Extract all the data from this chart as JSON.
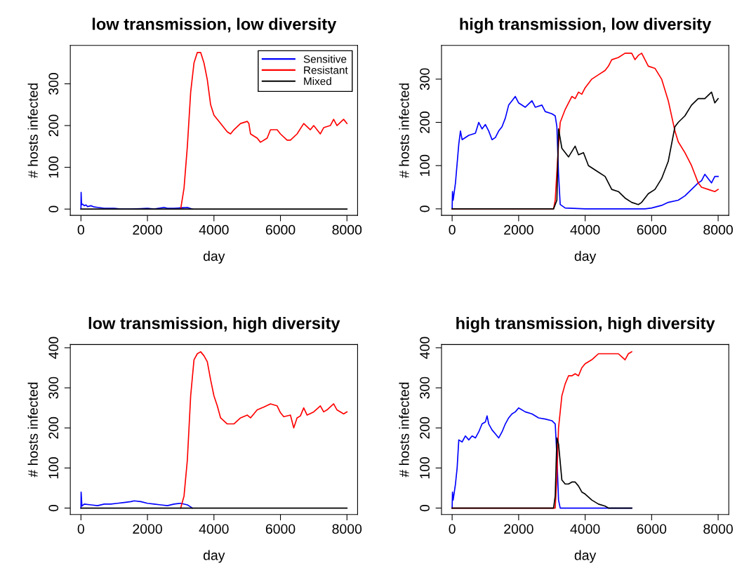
{
  "chart_data": [
    {
      "type": "line",
      "title": "low transmission, low diversity",
      "xlabel": "day",
      "ylabel": "# hosts infected",
      "xlim": [
        -320,
        8320
      ],
      "ylim": [
        -15,
        392
      ],
      "xticks": [
        0,
        2000,
        4000,
        6000,
        8000
      ],
      "yticks": [
        0,
        100,
        200,
        300
      ],
      "grid": false,
      "legend": "top right",
      "series": [
        {
          "name": "Sensitive",
          "color": "#0000ff",
          "x": [
            0,
            5,
            20,
            50,
            100,
            150,
            200,
            300,
            400,
            500,
            700,
            1000,
            1200,
            1500,
            1800,
            2000,
            2200,
            2500,
            2600,
            2800,
            3000,
            3200,
            3350
          ],
          "values": [
            0,
            40,
            10,
            12,
            8,
            10,
            6,
            8,
            5,
            4,
            2,
            2,
            0,
            0,
            1,
            2,
            0,
            4,
            2,
            2,
            3,
            4,
            0
          ]
        },
        {
          "name": "Resistant",
          "color": "#ff0000",
          "x": [
            3000,
            3100,
            3200,
            3300,
            3400,
            3500,
            3600,
            3700,
            3800,
            3900,
            4000,
            4200,
            4400,
            4500,
            4600,
            4800,
            5000,
            5050,
            5100,
            5300,
            5400,
            5600,
            5700,
            5900,
            6000,
            6200,
            6300,
            6500,
            6700,
            6900,
            7000,
            7200,
            7300,
            7500,
            7600,
            7700,
            7900,
            8000
          ],
          "values": [
            0,
            50,
            150,
            280,
            350,
            375,
            375,
            350,
            310,
            250,
            225,
            205,
            185,
            180,
            190,
            205,
            210,
            205,
            180,
            170,
            160,
            170,
            190,
            190,
            180,
            165,
            165,
            180,
            205,
            190,
            200,
            180,
            195,
            200,
            215,
            200,
            215,
            205
          ]
        },
        {
          "name": "Mixed",
          "color": "#000000",
          "x": [
            0,
            8000
          ],
          "values": [
            0,
            0
          ]
        }
      ]
    },
    {
      "type": "line",
      "title": "high transmission, low diversity",
      "xlabel": "day",
      "ylabel": "# hosts infected",
      "xlim": [
        -320,
        8320
      ],
      "ylim": [
        -15,
        378
      ],
      "xticks": [
        0,
        2000,
        4000,
        6000,
        8000
      ],
      "yticks": [
        0,
        100,
        200,
        300
      ],
      "grid": false,
      "legend": false,
      "series": [
        {
          "color": "#0000ff",
          "x": [
            0,
            10,
            30,
            100,
            200,
            250,
            300,
            500,
            700,
            800,
            900,
            1000,
            1100,
            1200,
            1300,
            1400,
            1500,
            1600,
            1700,
            1800,
            1900,
            2000,
            2200,
            2400,
            2500,
            2700,
            2800,
            3000,
            3100,
            3150,
            3200,
            3250,
            3400,
            4000,
            5000,
            5800,
            6000,
            6300,
            6500,
            6800,
            7000,
            7200,
            7400,
            7500,
            7600,
            7700,
            7800,
            7900,
            8000
          ],
          "values": [
            0,
            40,
            20,
            60,
            150,
            180,
            160,
            170,
            175,
            200,
            185,
            195,
            180,
            160,
            165,
            180,
            190,
            210,
            240,
            250,
            260,
            245,
            235,
            250,
            235,
            240,
            225,
            220,
            215,
            190,
            80,
            10,
            2,
            0,
            0,
            0,
            2,
            8,
            15,
            20,
            30,
            45,
            60,
            65,
            80,
            70,
            60,
            75,
            75
          ]
        },
        {
          "color": "#ff0000",
          "x": [
            0,
            3050,
            3100,
            3200,
            3250,
            3400,
            3600,
            3700,
            3800,
            3900,
            4000,
            4200,
            4400,
            4600,
            4700,
            4800,
            5000,
            5200,
            5400,
            5500,
            5600,
            5700,
            5800,
            5900,
            6100,
            6300,
            6500,
            6700,
            6800,
            7000,
            7200,
            7400,
            7500,
            7700,
            7900,
            8000
          ],
          "values": [
            0,
            0,
            20,
            150,
            200,
            230,
            260,
            255,
            270,
            265,
            280,
            300,
            310,
            320,
            330,
            345,
            350,
            360,
            360,
            345,
            355,
            360,
            345,
            330,
            325,
            300,
            250,
            180,
            155,
            130,
            100,
            60,
            50,
            45,
            40,
            45
          ]
        },
        {
          "color": "#000000",
          "x": [
            0,
            3050,
            3150,
            3200,
            3300,
            3500,
            3700,
            3800,
            3950,
            4100,
            4400,
            4600,
            4800,
            5000,
            5200,
            5400,
            5600,
            5700,
            5900,
            6100,
            6300,
            6500,
            6700,
            6800,
            7000,
            7200,
            7400,
            7600,
            7800,
            7900,
            8000
          ],
          "values": [
            0,
            0,
            20,
            185,
            140,
            120,
            145,
            125,
            130,
            100,
            85,
            75,
            45,
            40,
            25,
            15,
            10,
            15,
            35,
            45,
            70,
            110,
            190,
            200,
            215,
            240,
            255,
            255,
            270,
            245,
            255
          ]
        }
      ]
    },
    {
      "type": "line",
      "title": "low transmission, high diversity",
      "xlabel": "day",
      "ylabel": "# hosts infected",
      "xlim": [
        -320,
        8320
      ],
      "ylim": [
        -16,
        408
      ],
      "xticks": [
        0,
        2000,
        4000,
        6000,
        8000
      ],
      "yticks": [
        0,
        100,
        200,
        300,
        400
      ],
      "grid": false,
      "legend": false,
      "series": [
        {
          "color": "#0000ff",
          "x": [
            0,
            5,
            30,
            100,
            300,
            500,
            700,
            900,
            1100,
            1300,
            1500,
            1600,
            1800,
            2000,
            2200,
            2400,
            2600,
            2800,
            3000,
            3200,
            3300,
            3350
          ],
          "values": [
            0,
            40,
            5,
            10,
            8,
            6,
            10,
            10,
            12,
            14,
            16,
            18,
            16,
            12,
            10,
            8,
            6,
            10,
            12,
            8,
            3,
            0
          ]
        },
        {
          "color": "#ff0000",
          "x": [
            3000,
            3100,
            3200,
            3300,
            3400,
            3500,
            3600,
            3700,
            3800,
            3900,
            4000,
            4100,
            4200,
            4400,
            4600,
            4800,
            5000,
            5100,
            5300,
            5500,
            5700,
            5900,
            6000,
            6100,
            6300,
            6400,
            6500,
            6600,
            6700,
            6800,
            7000,
            7200,
            7300,
            7400,
            7600,
            7700,
            7900,
            8000
          ],
          "values": [
            0,
            30,
            120,
            280,
            370,
            385,
            390,
            380,
            365,
            320,
            280,
            255,
            225,
            210,
            210,
            225,
            232,
            225,
            245,
            252,
            260,
            255,
            238,
            228,
            232,
            200,
            225,
            230,
            250,
            232,
            240,
            255,
            240,
            245,
            260,
            245,
            235,
            240
          ]
        },
        {
          "color": "#000000",
          "x": [
            0,
            8000
          ],
          "values": [
            0,
            0
          ]
        }
      ]
    },
    {
      "type": "line",
      "title": "high transmission, high diversity",
      "xlabel": "day",
      "ylabel": "# hosts infected",
      "xlim": [
        -320,
        8320
      ],
      "ylim": [
        -16,
        408
      ],
      "xticks": [
        0,
        2000,
        4000,
        6000,
        8000
      ],
      "yticks": [
        0,
        100,
        200,
        300,
        400
      ],
      "grid": false,
      "legend": false,
      "series": [
        {
          "color": "#0000ff",
          "x": [
            0,
            10,
            30,
            100,
            150,
            200,
            300,
            400,
            500,
            600,
            700,
            800,
            900,
            1000,
            1050,
            1100,
            1200,
            1300,
            1400,
            1500,
            1600,
            1700,
            1800,
            1900,
            2000,
            2200,
            2400,
            2600,
            2800,
            3000,
            3100,
            3150,
            3200,
            3250,
            5400
          ],
          "values": [
            0,
            40,
            20,
            60,
            100,
            170,
            165,
            180,
            170,
            180,
            175,
            190,
            210,
            215,
            230,
            210,
            195,
            185,
            175,
            190,
            210,
            225,
            235,
            240,
            250,
            240,
            235,
            225,
            222,
            218,
            210,
            130,
            20,
            0,
            0
          ]
        },
        {
          "color": "#ff0000",
          "x": [
            0,
            3100,
            3150,
            3200,
            3300,
            3400,
            3500,
            3600,
            3700,
            3800,
            3900,
            4000,
            4200,
            4400,
            4600,
            4800,
            5000,
            5200,
            5300,
            5400
          ],
          "values": [
            0,
            0,
            80,
            200,
            280,
            310,
            330,
            330,
            335,
            330,
            350,
            360,
            370,
            385,
            385,
            385,
            385,
            370,
            385,
            390
          ]
        },
        {
          "color": "#000000",
          "x": [
            0,
            3050,
            3100,
            3150,
            3200,
            3300,
            3400,
            3500,
            3600,
            3700,
            3800,
            3900,
            4000,
            4200,
            4400,
            4600,
            4700,
            5400
          ],
          "values": [
            0,
            0,
            30,
            175,
            160,
            70,
            60,
            60,
            65,
            65,
            55,
            40,
            35,
            20,
            10,
            5,
            0,
            0
          ]
        }
      ]
    }
  ]
}
